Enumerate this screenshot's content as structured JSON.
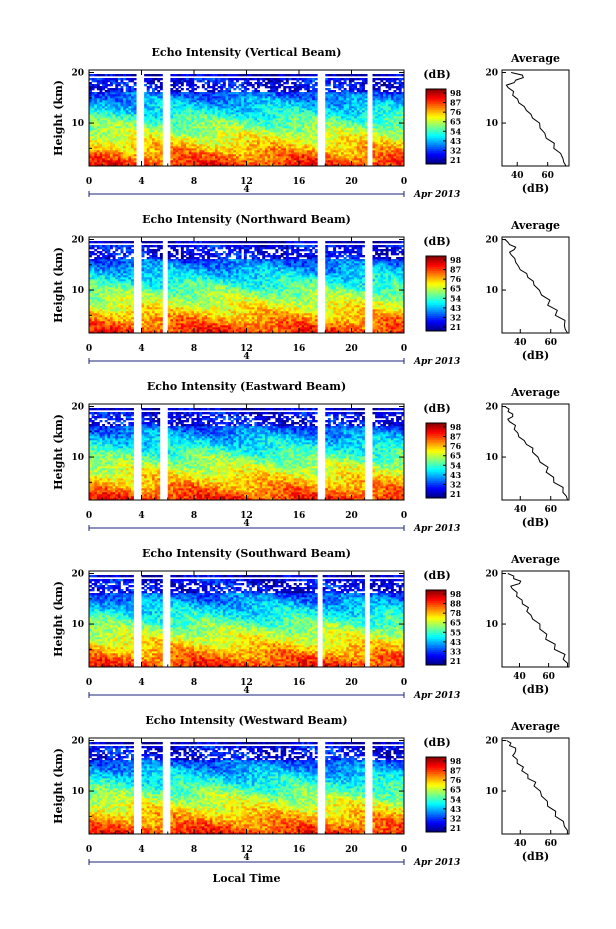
{
  "chart_data": [
    {
      "type": "heatmap",
      "title": "Echo Intensity (Vertical Beam)",
      "ylabel": "Height (km)",
      "y_ticks": [
        "10",
        "20"
      ],
      "x_ticks": [
        "0",
        "4",
        "8",
        "12",
        "16",
        "20",
        "0"
      ],
      "date_label": "4",
      "month_label": "Apr 2013",
      "colorbar_unit": "(dB)",
      "colorbar_ticks": [
        "98",
        "87",
        "76",
        "65",
        "54",
        "43",
        "32",
        "21"
      ],
      "xlim": [
        0,
        24
      ],
      "ylim": [
        1.5,
        20.5
      ],
      "gaps": [
        3.9,
        5.9,
        17.7,
        21.4
      ],
      "profile": {
        "title": "Average",
        "xlabel": "(dB)",
        "x_ticks": [
          "40",
          "60"
        ],
        "y_ticks": [
          "10",
          "20"
        ],
        "xlim": [
          30,
          74
        ],
        "heights": [
          1.5,
          3,
          5,
          7,
          9,
          11,
          12.5,
          14,
          15.5,
          17,
          18,
          19,
          20
        ],
        "values": [
          72,
          70,
          64,
          59,
          55,
          50,
          46,
          41,
          37,
          34,
          38,
          44,
          36
        ]
      }
    },
    {
      "type": "heatmap",
      "title": "Echo Intensity (Northward Beam)",
      "ylabel": "Height (km)",
      "y_ticks": [
        "10",
        "20"
      ],
      "x_ticks": [
        "0",
        "4",
        "8",
        "12",
        "16",
        "20",
        "0"
      ],
      "date_label": "4",
      "month_label": "Apr 2013",
      "colorbar_unit": "(dB)",
      "colorbar_ticks": [
        "98",
        "87",
        "76",
        "65",
        "54",
        "43",
        "32",
        "21"
      ],
      "xlim": [
        0,
        24
      ],
      "ylim": [
        1.5,
        20.5
      ],
      "gaps": [
        3.7,
        5.8,
        17.7,
        21.3
      ],
      "profile": {
        "title": "Average",
        "xlabel": "(dB)",
        "x_ticks": [
          "40",
          "60"
        ],
        "y_ticks": [
          "10",
          "20"
        ],
        "xlim": [
          28,
          72
        ],
        "heights": [
          1.5,
          3,
          5,
          7,
          9,
          11,
          12.5,
          14,
          15.5,
          17,
          18,
          19,
          20
        ],
        "values": [
          71,
          69,
          63,
          58,
          54,
          49,
          45,
          40,
          37,
          34,
          36,
          33,
          30
        ]
      }
    },
    {
      "type": "heatmap",
      "title": "Echo Intensity (Eastward Beam)",
      "ylabel": "Height (km)",
      "y_ticks": [
        "10",
        "20"
      ],
      "x_ticks": [
        "0",
        "4",
        "8",
        "12",
        "16",
        "20",
        "0"
      ],
      "date_label": "4",
      "month_label": "Apr 2013",
      "colorbar_unit": "(dB)",
      "colorbar_ticks": [
        "98",
        "87",
        "76",
        "65",
        "54",
        "43",
        "32",
        "21"
      ],
      "xlim": [
        0,
        24
      ],
      "ylim": [
        1.5,
        20.5
      ],
      "gaps": [
        3.7,
        5.7,
        17.7,
        21.3
      ],
      "profile": {
        "title": "Average",
        "xlabel": "(dB)",
        "x_ticks": [
          "40",
          "60"
        ],
        "y_ticks": [
          "10",
          "20"
        ],
        "xlim": [
          28,
          72
        ],
        "heights": [
          1.5,
          3,
          5,
          7,
          9,
          11,
          12.5,
          14,
          15.5,
          17,
          18,
          19,
          20
        ],
        "values": [
          71,
          68,
          62,
          57,
          53,
          48,
          44,
          39,
          36,
          33,
          35,
          32,
          30
        ]
      }
    },
    {
      "type": "heatmap",
      "title": "Echo Intensity (Southward Beam)",
      "ylabel": "Height (km)",
      "y_ticks": [
        "10",
        "20"
      ],
      "x_ticks": [
        "0",
        "4",
        "8",
        "12",
        "16",
        "20",
        "0"
      ],
      "date_label": "4",
      "month_label": "Apr 2013",
      "colorbar_unit": "(dB)",
      "colorbar_ticks": [
        "98",
        "88",
        "78",
        "65",
        "55",
        "43",
        "33",
        "21"
      ],
      "xlim": [
        0,
        24
      ],
      "ylim": [
        1.5,
        20.5
      ],
      "gaps": [
        3.7,
        5.9,
        17.6,
        21.2
      ],
      "profile": {
        "title": "Average",
        "xlabel": "(dB)",
        "x_ticks": [
          "40",
          "60"
        ],
        "y_ticks": [
          "10",
          "20"
        ],
        "xlim": [
          28,
          74
        ],
        "heights": [
          1.5,
          3,
          5,
          7,
          9,
          11,
          12.5,
          14,
          15.5,
          17,
          18,
          19,
          20
        ],
        "values": [
          73,
          70,
          64,
          58,
          54,
          49,
          45,
          42,
          38,
          35,
          40,
          36,
          32
        ]
      }
    },
    {
      "type": "heatmap",
      "title": "Echo Intensity (Westward Beam)",
      "ylabel": "Height (km)",
      "y_ticks": [
        "10",
        "20"
      ],
      "x_ticks": [
        "0",
        "4",
        "8",
        "12",
        "16",
        "20",
        "0"
      ],
      "date_label": "4",
      "month_label": "Apr 2013",
      "xlabel": "Local Time",
      "colorbar_unit": "(dB)",
      "colorbar_ticks": [
        "98",
        "87",
        "76",
        "65",
        "54",
        "43",
        "32",
        "21"
      ],
      "xlim": [
        0,
        24
      ],
      "ylim": [
        1.5,
        20.5
      ],
      "gaps": [
        3.7,
        5.9,
        17.7,
        21.3
      ],
      "profile": {
        "title": "Average",
        "xlabel": "(dB)",
        "x_ticks": [
          "40",
          "60"
        ],
        "y_ticks": [
          "10",
          "20"
        ],
        "xlim": [
          28,
          72
        ],
        "heights": [
          1.5,
          3,
          5,
          7,
          9,
          11,
          12.5,
          14,
          15.5,
          17,
          18,
          19,
          20
        ],
        "values": [
          71,
          69,
          63,
          58,
          54,
          49,
          45,
          41,
          38,
          35,
          37,
          33,
          31
        ]
      }
    }
  ]
}
